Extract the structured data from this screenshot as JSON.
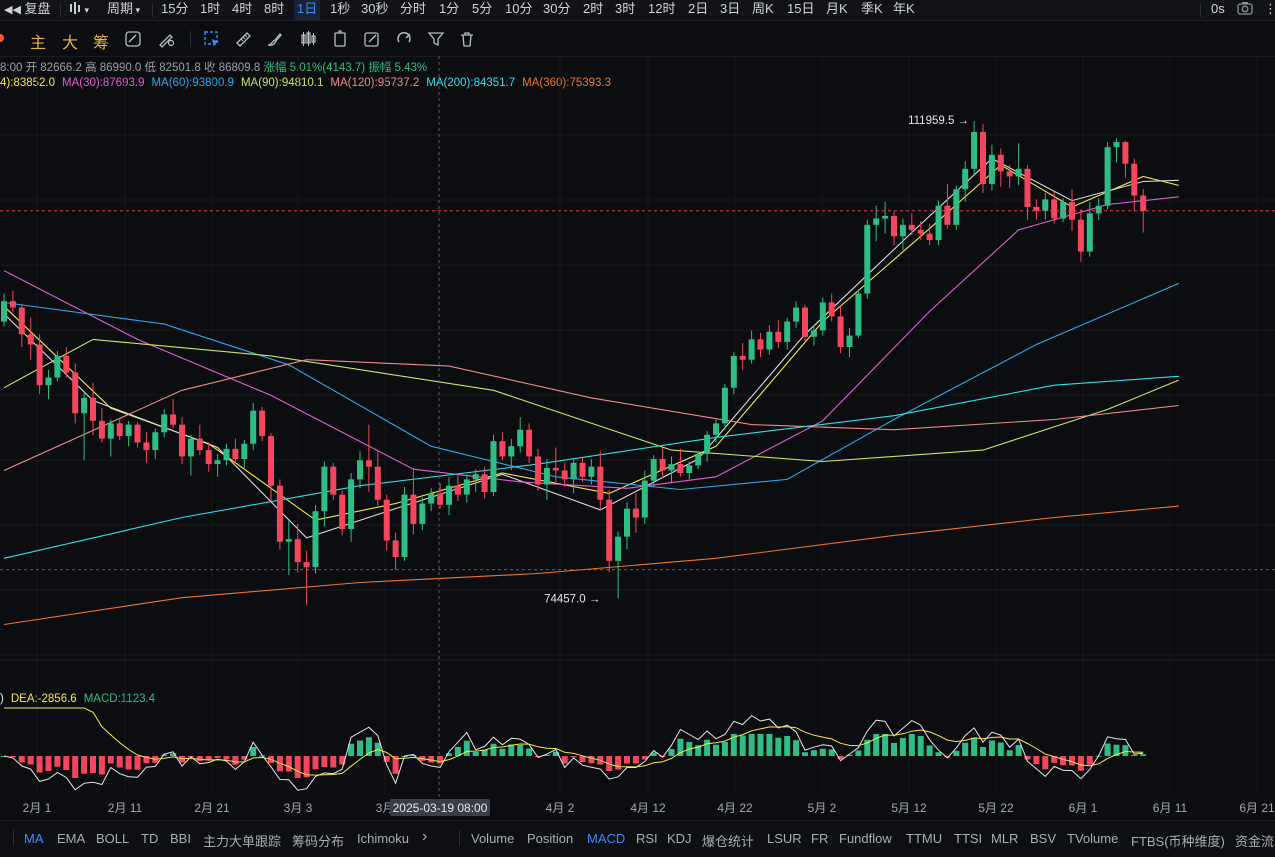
{
  "toolbar": {
    "replay_label": "复盘",
    "period_label": "周期",
    "intervals": [
      "15分",
      "1时",
      "4时",
      "8时",
      "1日",
      "1秒",
      "30秒",
      "分时",
      "1分",
      "5分",
      "10分",
      "30分",
      "2时",
      "3时",
      "12时",
      "2日",
      "3日",
      "周K",
      "15日",
      "月K",
      "季K",
      "年K"
    ],
    "active_interval": "1日",
    "timer": "0s"
  },
  "drawing_toolbar": {
    "labels": [
      "主",
      "大",
      "筹"
    ]
  },
  "ohlc": {
    "time": "8:00",
    "open": "开 82666.2",
    "high": "高 86990.0",
    "low": "低 82501.8",
    "close": "收 86809.8",
    "change": "涨幅 5.01%(4143.7)",
    "amplitude": "振幅 5.43%"
  },
  "ma_legend": [
    {
      "label": "4):83852.0",
      "color": "#f5e94c"
    },
    {
      "label": "MA(30):87693.9",
      "color": "#e05fd3"
    },
    {
      "label": "MA(60):93800.9",
      "color": "#2fa8e8"
    },
    {
      "label": "MA(90):94810.1",
      "color": "#c9e46a"
    },
    {
      "label": "MA(120):95737.2",
      "color": "#ef8a8a"
    },
    {
      "label": "MA(200):84351.7",
      "color": "#2fe0e6"
    },
    {
      "label": "MA(360):75393.3",
      "color": "#f0762b"
    }
  ],
  "macd_legend": [
    {
      "label": ")",
      "color": "#e6e6e6"
    },
    {
      "label": "DEA:-2856.6",
      "color": "#f5e94c"
    },
    {
      "label": "MACD:1123.4",
      "color": "#2ebd85"
    }
  ],
  "markers": {
    "high": "111959.5 →",
    "low": "74457.0 →"
  },
  "x_axis": {
    "ticks": [
      "2月 1",
      "2月 11",
      "2月 21",
      "3月 3",
      "3月",
      "4月 2",
      "4月 12",
      "4月 22",
      "5月 2",
      "5月 12",
      "5月 22",
      "6月 1",
      "6月 11",
      "6月 21"
    ],
    "crosshair_label": "2025-03-19 08:00"
  },
  "indicators": {
    "items": [
      "MA",
      "EMA",
      "BOLL",
      "TD",
      "BBI",
      "主力大单跟踪",
      "筹码分布",
      "Ichimoku",
      "Volume",
      "Position",
      "MACD",
      "RSI",
      "KDJ",
      "爆仓统计",
      "LSUR",
      "FR",
      "Fundflow",
      "TTMU",
      "TTSI",
      "MLR",
      "BSV",
      "TVolume",
      "FTBS(币种维度)",
      "资金流"
    ],
    "active": [
      "MA",
      "MACD"
    ]
  },
  "chart_data": {
    "type": "candlestick",
    "series_name": "BTC/USDT 1日",
    "y_range": [
      70000,
      114000
    ],
    "high_marker": 111959.5,
    "low_marker": 74457.0,
    "candles": [
      [
        96200,
        98400,
        95800,
        97800
      ],
      [
        97800,
        98600,
        96900,
        97300
      ],
      [
        97300,
        97600,
        94200,
        95200
      ],
      [
        95200,
        96500,
        93200,
        94400
      ],
      [
        94400,
        95200,
        90500,
        91200
      ],
      [
        91200,
        92400,
        90100,
        91800
      ],
      [
        91800,
        93900,
        91500,
        93500
      ],
      [
        93500,
        94200,
        91800,
        92200
      ],
      [
        92200,
        92900,
        88200,
        89000
      ],
      [
        89000,
        90700,
        85300,
        90200
      ],
      [
        90200,
        91400,
        87300,
        88400
      ],
      [
        88400,
        89400,
        86700,
        87000
      ],
      [
        87000,
        88500,
        85600,
        88200
      ],
      [
        88200,
        88600,
        86900,
        87200
      ],
      [
        87200,
        88400,
        86400,
        88100
      ],
      [
        88100,
        88300,
        86300,
        86700
      ],
      [
        86700,
        87500,
        85100,
        86100
      ],
      [
        86100,
        87800,
        85400,
        87500
      ],
      [
        87500,
        89300,
        87100,
        88900
      ],
      [
        88900,
        90100,
        87800,
        88100
      ],
      [
        88100,
        88700,
        85000,
        85600
      ],
      [
        85600,
        87300,
        84100,
        87000
      ],
      [
        87000,
        88100,
        85700,
        86100
      ],
      [
        86100,
        86700,
        84400,
        85000
      ],
      [
        85000,
        85800,
        84000,
        85300
      ],
      [
        85300,
        86600,
        84900,
        86200
      ],
      [
        86200,
        87000,
        85000,
        85400
      ],
      [
        85400,
        86900,
        84700,
        86600
      ],
      [
        86600,
        89800,
        86100,
        89200
      ],
      [
        89200,
        89500,
        86800,
        87200
      ],
      [
        87200,
        87400,
        82100,
        83300
      ],
      [
        83300,
        83800,
        78300,
        78900
      ],
      [
        78900,
        80600,
        76300,
        79100
      ],
      [
        79100,
        80300,
        76500,
        77300
      ],
      [
        77300,
        78200,
        73900,
        76900
      ],
      [
        76900,
        81800,
        76400,
        81300
      ],
      [
        81300,
        85200,
        80100,
        84800
      ],
      [
        84800,
        85100,
        82200,
        82600
      ],
      [
        82600,
        82900,
        79400,
        79900
      ],
      [
        79900,
        84300,
        78900,
        83800
      ],
      [
        83800,
        86000,
        83100,
        85300
      ],
      [
        85300,
        88100,
        82800,
        84800
      ],
      [
        84800,
        86000,
        81700,
        82200
      ],
      [
        82200,
        82600,
        78200,
        79000
      ],
      [
        79000,
        79600,
        76700,
        77700
      ],
      [
        77700,
        83200,
        77400,
        82600
      ],
      [
        82600,
        84700,
        79500,
        80300
      ],
      [
        80300,
        82400,
        79800,
        81900
      ],
      [
        81900,
        83100,
        81300,
        82700
      ],
      [
        82700,
        83500,
        81500,
        81800
      ],
      [
        81800,
        84000,
        81000,
        83300
      ],
      [
        83300,
        84300,
        82100,
        82600
      ],
      [
        82600,
        84200,
        82000,
        83800
      ],
      [
        83800,
        84600,
        82800,
        84200
      ],
      [
        84200,
        84800,
        82300,
        82800
      ],
      [
        82800,
        87300,
        82500,
        86800
      ],
      [
        86800,
        87500,
        85300,
        85600
      ],
      [
        85600,
        87000,
        84500,
        86400
      ],
      [
        86400,
        88700,
        85900,
        87700
      ],
      [
        87700,
        88200,
        85100,
        85600
      ],
      [
        85600,
        86200,
        82900,
        83400
      ],
      [
        83400,
        85400,
        82200,
        84700
      ],
      [
        84700,
        86300,
        83600,
        84500
      ],
      [
        84500,
        85100,
        83200,
        83800
      ],
      [
        83800,
        85400,
        82700,
        85100
      ],
      [
        85100,
        85500,
        83600,
        84000
      ],
      [
        84000,
        85400,
        83400,
        84800
      ],
      [
        84800,
        86000,
        81400,
        82200
      ],
      [
        82200,
        83000,
        76500,
        77400
      ],
      [
        77400,
        79700,
        74457,
        79300
      ],
      [
        79300,
        82000,
        78300,
        81500
      ],
      [
        81500,
        82700,
        79600,
        80800
      ],
      [
        80800,
        84500,
        80300,
        83700
      ],
      [
        83700,
        85700,
        83200,
        85400
      ],
      [
        85400,
        86300,
        83900,
        84500
      ],
      [
        84500,
        85600,
        83500,
        85000
      ],
      [
        85000,
        86200,
        84000,
        84300
      ],
      [
        84300,
        85200,
        83800,
        84900
      ],
      [
        84900,
        86000,
        84600,
        85800
      ],
      [
        85800,
        87600,
        85200,
        87300
      ],
      [
        87300,
        88500,
        86700,
        88200
      ],
      [
        88200,
        91300,
        87700,
        91000
      ],
      [
        91000,
        93800,
        90500,
        93500
      ],
      [
        93500,
        94500,
        92400,
        93200
      ],
      [
        93200,
        95500,
        92900,
        94800
      ],
      [
        94800,
        95300,
        93400,
        94000
      ],
      [
        94000,
        95900,
        93600,
        95400
      ],
      [
        95400,
        96300,
        94100,
        94600
      ],
      [
        94600,
        96500,
        94000,
        96200
      ],
      [
        96200,
        97800,
        95700,
        97300
      ],
      [
        97300,
        97500,
        94600,
        95000
      ],
      [
        95000,
        95900,
        94300,
        95500
      ],
      [
        95500,
        98100,
        95100,
        97700
      ],
      [
        97700,
        98400,
        96200,
        96600
      ],
      [
        96600,
        97400,
        93700,
        94200
      ],
      [
        94200,
        95700,
        93400,
        95100
      ],
      [
        95100,
        98700,
        94900,
        98400
      ],
      [
        98400,
        104200,
        98000,
        103800
      ],
      [
        103800,
        105300,
        102500,
        104300
      ],
      [
        104300,
        105600,
        103100,
        104500
      ],
      [
        104500,
        104900,
        102200,
        102900
      ],
      [
        102900,
        104300,
        101800,
        103800
      ],
      [
        103800,
        104700,
        103000,
        103400
      ],
      [
        103400,
        104100,
        102600,
        103100
      ],
      [
        103100,
        103900,
        102200,
        102600
      ],
      [
        102600,
        105700,
        102200,
        105300
      ],
      [
        105300,
        107000,
        103500,
        103800
      ],
      [
        103800,
        106900,
        103400,
        106600
      ],
      [
        106600,
        108800,
        105600,
        108200
      ],
      [
        108200,
        111959.5,
        107700,
        111100
      ],
      [
        111100,
        111700,
        106300,
        107000
      ],
      [
        107000,
        110100,
        106500,
        109300
      ],
      [
        109300,
        109800,
        106800,
        108000
      ],
      [
        108000,
        108500,
        106700,
        107600
      ],
      [
        107600,
        110200,
        106900,
        108200
      ],
      [
        108200,
        108500,
        104200,
        105200
      ],
      [
        105200,
        105800,
        104200,
        104900
      ],
      [
        104900,
        106300,
        104200,
        105800
      ],
      [
        105800,
        106400,
        103900,
        104300
      ],
      [
        104300,
        105900,
        104000,
        105600
      ],
      [
        105600,
        106600,
        103300,
        104200
      ],
      [
        104200,
        105000,
        100900,
        101700
      ],
      [
        101700,
        105600,
        101300,
        104700
      ],
      [
        104700,
        105900,
        104200,
        105300
      ],
      [
        105300,
        110300,
        105000,
        109900
      ],
      [
        109900,
        110600,
        108700,
        110300
      ],
      [
        110300,
        110400,
        107500,
        108600
      ],
      [
        108600,
        109000,
        104900,
        106100
      ],
      [
        106100,
        106600,
        103200,
        104900
      ]
    ],
    "ma": [
      {
        "name": "MA(4)",
        "color": "#f5e94c",
        "values": [
          [
            0,
            97400
          ],
          [
            12,
            89400
          ],
          [
            23,
            86600
          ],
          [
            35,
            80600
          ],
          [
            44,
            81900
          ],
          [
            56,
            84300
          ],
          [
            68,
            82700
          ],
          [
            80,
            86400
          ],
          [
            92,
            96200
          ],
          [
            104,
            103500
          ],
          [
            112,
            108500
          ],
          [
            120,
            105200
          ],
          [
            128,
            107600
          ],
          [
            132,
            106900
          ]
        ]
      },
      {
        "name": "MA(7)",
        "color": "#dcdcdc",
        "values": [
          [
            0,
            96800
          ],
          [
            10,
            90000
          ],
          [
            24,
            86300
          ],
          [
            34,
            79200
          ],
          [
            44,
            81500
          ],
          [
            56,
            84200
          ],
          [
            67,
            81400
          ],
          [
            78,
            85400
          ],
          [
            90,
            95200
          ],
          [
            102,
            103200
          ],
          [
            111,
            109000
          ],
          [
            120,
            105700
          ],
          [
            128,
            107200
          ],
          [
            132,
            107300
          ]
        ]
      },
      {
        "name": "MA(30)",
        "color": "#e05fd3",
        "values": [
          [
            0,
            100200
          ],
          [
            15,
            94800
          ],
          [
            30,
            90400
          ],
          [
            46,
            84600
          ],
          [
            58,
            83600
          ],
          [
            70,
            83100
          ],
          [
            80,
            84000
          ],
          [
            92,
            88400
          ],
          [
            104,
            97000
          ],
          [
            114,
            103400
          ],
          [
            124,
            105400
          ],
          [
            132,
            106000
          ]
        ]
      },
      {
        "name": "MA(60)",
        "color": "#2fa8e8",
        "values": [
          [
            0,
            97700
          ],
          [
            18,
            96000
          ],
          [
            32,
            92800
          ],
          [
            48,
            86400
          ],
          [
            62,
            84000
          ],
          [
            76,
            83000
          ],
          [
            88,
            83800
          ],
          [
            100,
            88500
          ],
          [
            116,
            94400
          ],
          [
            132,
            99200
          ]
        ]
      },
      {
        "name": "MA(90)",
        "color": "#c9e46a",
        "values": [
          [
            0,
            91000
          ],
          [
            10,
            94800
          ],
          [
            30,
            93500
          ],
          [
            55,
            90800
          ],
          [
            75,
            86100
          ],
          [
            92,
            85200
          ],
          [
            110,
            86100
          ],
          [
            124,
            89300
          ],
          [
            132,
            91600
          ]
        ]
      },
      {
        "name": "MA(120)",
        "color": "#ef8a8a",
        "values": [
          [
            0,
            84500
          ],
          [
            20,
            90800
          ],
          [
            34,
            93200
          ],
          [
            50,
            92700
          ],
          [
            66,
            90200
          ],
          [
            84,
            88100
          ],
          [
            100,
            87700
          ],
          [
            118,
            88500
          ],
          [
            132,
            89600
          ]
        ]
      },
      {
        "name": "MA(200)",
        "color": "#2fe0e6",
        "values": [
          [
            0,
            77600
          ],
          [
            20,
            80800
          ],
          [
            40,
            83300
          ],
          [
            60,
            85000
          ],
          [
            80,
            87100
          ],
          [
            100,
            88800
          ],
          [
            118,
            91200
          ],
          [
            132,
            91900
          ]
        ]
      },
      {
        "name": "MA(360)",
        "color": "#f0762b",
        "values": [
          [
            0,
            72400
          ],
          [
            20,
            74500
          ],
          [
            40,
            75700
          ],
          [
            60,
            76400
          ],
          [
            80,
            77600
          ],
          [
            100,
            79400
          ],
          [
            118,
            80800
          ],
          [
            132,
            81700
          ]
        ]
      }
    ]
  }
}
